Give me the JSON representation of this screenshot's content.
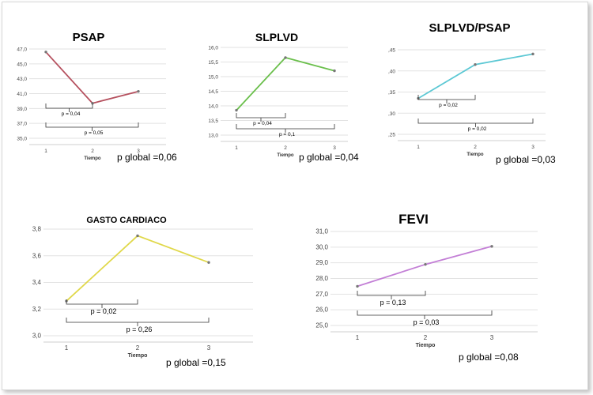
{
  "chart_data": [
    {
      "type": "line",
      "title": "PSAP",
      "xlabel": "Tiempo",
      "categories": [
        "1",
        "2",
        "3"
      ],
      "series": [
        {
          "values": [
            46.6,
            39.7,
            41.3
          ]
        }
      ],
      "ylim": [
        35.0,
        47.0
      ],
      "yticks": [
        "47,0",
        "45,0",
        "43,0",
        "41,0",
        "39,0",
        "37,0",
        "35,0"
      ],
      "color": "#b5505e",
      "brackets": [
        {
          "from": 1,
          "to": 2,
          "label": "p = 0,04"
        },
        {
          "from": 1,
          "to": 3,
          "label": "p = 0,05"
        }
      ],
      "p_global": "p global =0,06"
    },
    {
      "type": "line",
      "title": "SLPLVD",
      "xlabel": "Tiempo",
      "categories": [
        "1",
        "2",
        "3"
      ],
      "series": [
        {
          "values": [
            13.85,
            15.65,
            15.2
          ]
        }
      ],
      "ylim": [
        13.0,
        16.0
      ],
      "yticks": [
        "16,0",
        "15,5",
        "15,0",
        "14,5",
        "14,0",
        "13,5",
        "13,0"
      ],
      "color": "#6abf4b",
      "brackets": [
        {
          "from": 1,
          "to": 2,
          "label": "p = 0,04"
        },
        {
          "from": 1,
          "to": 3,
          "label": "p = 0,1"
        }
      ],
      "p_global": "p global =0,04"
    },
    {
      "type": "line",
      "title": "SLPLVD/PSAP",
      "xlabel": "Tiempo",
      "categories": [
        "1",
        "2",
        "3"
      ],
      "series": [
        {
          "values": [
            0.335,
            0.415,
            0.44
          ]
        }
      ],
      "ylim": [
        0.25,
        0.45
      ],
      "yticks": [
        ",45",
        ",40",
        ",35",
        ",30",
        ",25"
      ],
      "color": "#5cc8d4",
      "brackets": [
        {
          "from": 1,
          "to": 2,
          "label": "p = 0,02"
        },
        {
          "from": 1,
          "to": 3,
          "label": "p = 0,02"
        }
      ],
      "p_global": "p global =0,03"
    },
    {
      "type": "line",
      "title": "GASTO CARDIACO",
      "xlabel": "Tiempo",
      "categories": [
        "1",
        "2",
        "3"
      ],
      "series": [
        {
          "values": [
            3.26,
            3.75,
            3.55
          ]
        }
      ],
      "ylim": [
        3.0,
        3.8
      ],
      "yticks": [
        "3,8",
        "3,6",
        "3,4",
        "3,2",
        "3,0"
      ],
      "color": "#e0d84a",
      "brackets": [
        {
          "from": 1,
          "to": 2,
          "label": "p = 0,02"
        },
        {
          "from": 1,
          "to": 3,
          "label": "p = 0,26"
        }
      ],
      "p_global": "p global =0,15"
    },
    {
      "type": "line",
      "title": "FEVI",
      "xlabel": "Tiempo",
      "categories": [
        "1",
        "2",
        "3"
      ],
      "series": [
        {
          "values": [
            27.5,
            28.9,
            30.05
          ]
        }
      ],
      "ylim": [
        25.0,
        31.0
      ],
      "yticks": [
        "31,0",
        "30,0",
        "29,0",
        "28,0",
        "27,0",
        "26,0",
        "25,0"
      ],
      "color": "#c37fd6",
      "brackets": [
        {
          "from": 1,
          "to": 2,
          "label": "p = 0,13"
        },
        {
          "from": 1,
          "to": 3,
          "label": "p = 0,03"
        }
      ],
      "p_global": "p global =0,08"
    }
  ]
}
